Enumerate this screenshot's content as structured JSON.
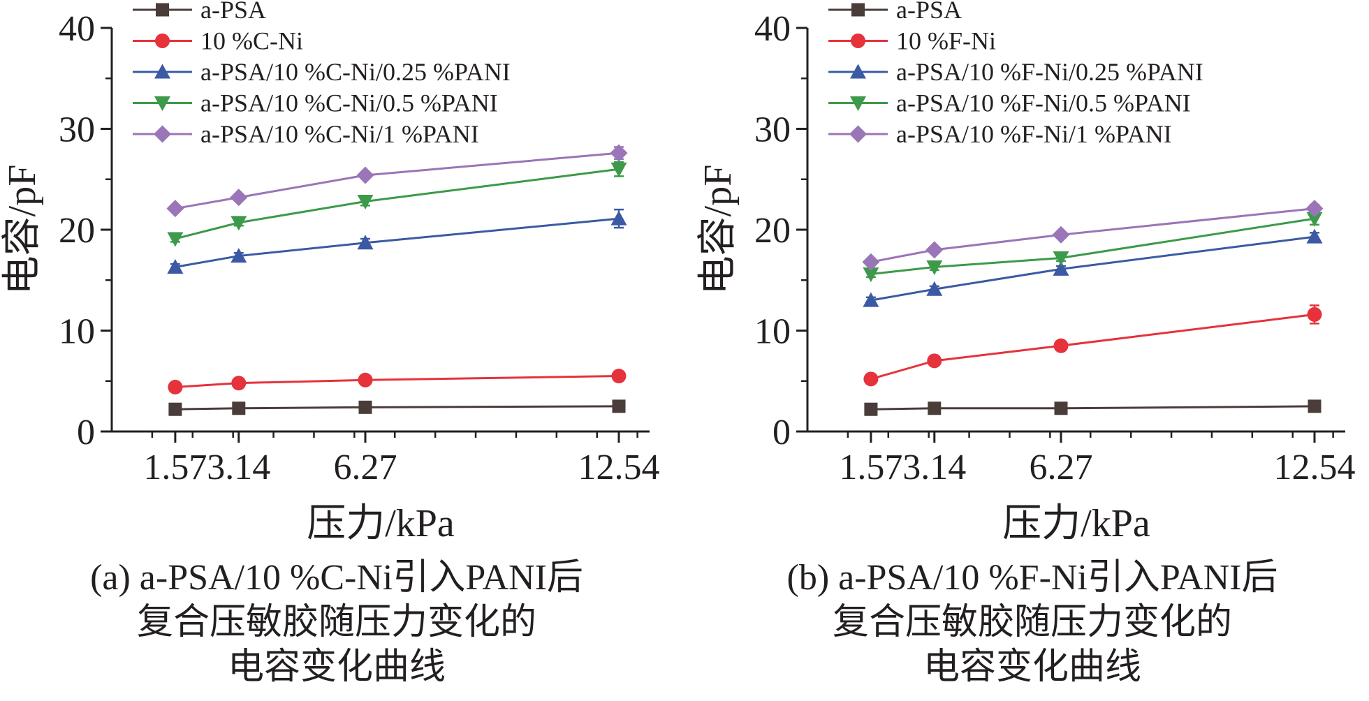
{
  "chart_data": [
    {
      "type": "line",
      "title": "",
      "xlabel": "压力/kPa",
      "ylabel": "电容/pF",
      "xlim": [
        0,
        13.3
      ],
      "ylim": [
        0,
        40
      ],
      "xticks": [
        1.57,
        3.14,
        6.27,
        12.54
      ],
      "xtick_labels": [
        "1.57",
        "3.14",
        "6.27",
        "12.54"
      ],
      "yticks": [
        0,
        10,
        20,
        30,
        40
      ],
      "ytick_labels": [
        "0",
        "10",
        "20",
        "30",
        "40"
      ],
      "legend_position": "top-left",
      "grid": false,
      "x": [
        1.57,
        3.14,
        6.27,
        12.54
      ],
      "series": [
        {
          "name": "a-PSA",
          "values": [
            2.2,
            2.3,
            2.4,
            2.5
          ],
          "errors": [
            0.15,
            0.15,
            0.15,
            0.2
          ],
          "color": "#4a3c39",
          "marker": "square"
        },
        {
          "name": "10 %C-Ni",
          "values": [
            4.4,
            4.8,
            5.1,
            5.5
          ],
          "errors": [
            0.2,
            0.2,
            0.2,
            0.3
          ],
          "color": "#e5323b",
          "marker": "circle"
        },
        {
          "name": "a-PSA/10 %C-Ni/0.25 %PANI",
          "values": [
            16.3,
            17.4,
            18.7,
            21.1
          ],
          "errors": [
            0.3,
            0.3,
            0.4,
            0.9
          ],
          "color": "#3b5aa3",
          "marker": "triangle-up"
        },
        {
          "name": "a-PSA/10 %C-Ni/0.5 %PANI",
          "values": [
            19.1,
            20.7,
            22.8,
            26.0
          ],
          "errors": [
            0.3,
            0.3,
            0.4,
            0.7
          ],
          "color": "#3c9a4a",
          "marker": "triangle-down"
        },
        {
          "name": "a-PSA/10 %C-Ni/1 %PANI",
          "values": [
            22.1,
            23.2,
            25.4,
            27.6
          ],
          "errors": [
            0.3,
            0.3,
            0.3,
            0.6
          ],
          "color": "#9a75b8",
          "marker": "diamond"
        }
      ],
      "caption": [
        "(a) a-PSA/10 %C-Ni引入PANI后",
        "复合压敏胶随压力变化的",
        "电容变化曲线"
      ]
    },
    {
      "type": "line",
      "title": "",
      "xlabel": "压力/kPa",
      "ylabel": "电容/pF",
      "xlim": [
        0,
        13.3
      ],
      "ylim": [
        0,
        40
      ],
      "xticks": [
        1.57,
        3.14,
        6.27,
        12.54
      ],
      "xtick_labels": [
        "1.57",
        "3.14",
        "6.27",
        "12.54"
      ],
      "yticks": [
        0,
        10,
        20,
        30,
        40
      ],
      "ytick_labels": [
        "0",
        "10",
        "20",
        "30",
        "40"
      ],
      "legend_position": "top-left",
      "grid": false,
      "x": [
        1.57,
        3.14,
        6.27,
        12.54
      ],
      "series": [
        {
          "name": "a-PSA",
          "values": [
            2.2,
            2.3,
            2.3,
            2.5
          ],
          "errors": [
            0.15,
            0.15,
            0.15,
            0.2
          ],
          "color": "#4a3c39",
          "marker": "square"
        },
        {
          "name": "10 %F-Ni",
          "values": [
            5.2,
            7.0,
            8.5,
            11.6
          ],
          "errors": [
            0.3,
            0.3,
            0.3,
            0.9
          ],
          "color": "#e5323b",
          "marker": "circle"
        },
        {
          "name": "a-PSA/10 %F-Ni/0.25 %PANI",
          "values": [
            13.0,
            14.1,
            16.1,
            19.3
          ],
          "errors": [
            0.3,
            0.3,
            0.3,
            0.4
          ],
          "color": "#3b5aa3",
          "marker": "triangle-up"
        },
        {
          "name": "a-PSA/10 %F-Ni/0.5 %PANI",
          "values": [
            15.6,
            16.3,
            17.2,
            21.1
          ],
          "errors": [
            0.3,
            0.3,
            0.3,
            0.6
          ],
          "color": "#3c9a4a",
          "marker": "triangle-down"
        },
        {
          "name": "a-PSA/10 %F-Ni/1 %PANI",
          "values": [
            16.8,
            18.0,
            19.5,
            22.1
          ],
          "errors": [
            0.3,
            0.3,
            0.3,
            0.4
          ],
          "color": "#9a75b8",
          "marker": "diamond"
        }
      ],
      "caption": [
        "(b) a-PSA/10 %F-Ni引入PANI后",
        "复合压敏胶随压力变化的",
        "电容变化曲线"
      ]
    }
  ]
}
